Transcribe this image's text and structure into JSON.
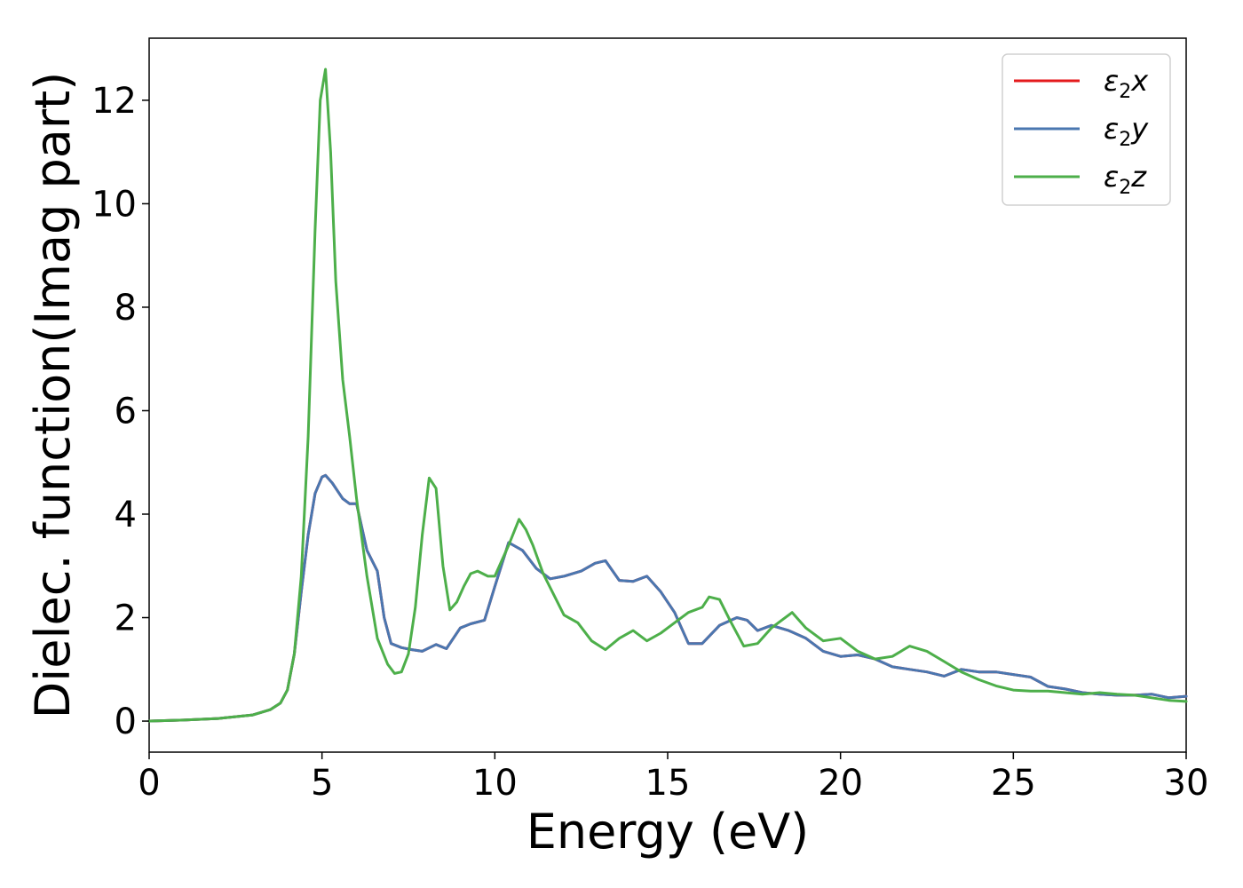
{
  "chart_data": {
    "type": "line",
    "xlabel": "Energy (eV)",
    "ylabel": "Dielec. function(Imag part)",
    "xlim": [
      0,
      30
    ],
    "ylim": [
      -0.6,
      13.2
    ],
    "xticks": [
      0,
      5,
      10,
      15,
      20,
      25,
      30
    ],
    "yticks": [
      0,
      2,
      4,
      6,
      8,
      10,
      12
    ],
    "grid": false,
    "legend_position": "top-right",
    "series": [
      {
        "name": "ε2x",
        "legend": {
          "symbol": "ε",
          "sub": "2",
          "axis": "x"
        },
        "color": "#e41a1c",
        "x": [
          0,
          1,
          2,
          3,
          3.5,
          3.8,
          4.0,
          4.2,
          4.4,
          4.6,
          4.8,
          5.0,
          5.1,
          5.3,
          5.6,
          5.8,
          6.0,
          6.3,
          6.6,
          6.8,
          7.0,
          7.3,
          7.6,
          7.9,
          8.3,
          8.6,
          9.0,
          9.3,
          9.7,
          10.0,
          10.4,
          10.8,
          11.2,
          11.6,
          12.0,
          12.5,
          12.9,
          13.2,
          13.6,
          14.0,
          14.4,
          14.8,
          15.2,
          15.6,
          16.0,
          16.5,
          17.0,
          17.3,
          17.6,
          18.0,
          18.5,
          19.0,
          19.5,
          20.0,
          20.5,
          21.0,
          21.5,
          22.0,
          22.5,
          23.0,
          23.5,
          24.0,
          24.5,
          25.0,
          25.5,
          26.0,
          26.5,
          27.0,
          27.5,
          28.0,
          28.5,
          29.0,
          29.5,
          30.0
        ],
        "values": [
          0.0,
          0.02,
          0.05,
          0.12,
          0.22,
          0.35,
          0.6,
          1.3,
          2.5,
          3.6,
          4.4,
          4.72,
          4.75,
          4.6,
          4.3,
          4.2,
          4.2,
          3.3,
          2.9,
          2.0,
          1.5,
          1.42,
          1.38,
          1.35,
          1.48,
          1.4,
          1.8,
          1.88,
          1.95,
          2.6,
          3.45,
          3.3,
          2.95,
          2.75,
          2.8,
          2.9,
          3.05,
          3.1,
          2.72,
          2.7,
          2.8,
          2.5,
          2.1,
          1.5,
          1.5,
          1.85,
          2.0,
          1.95,
          1.75,
          1.85,
          1.75,
          1.6,
          1.35,
          1.25,
          1.28,
          1.2,
          1.05,
          1.0,
          0.95,
          0.87,
          1.0,
          0.95,
          0.95,
          0.9,
          0.85,
          0.67,
          0.62,
          0.55,
          0.52,
          0.5,
          0.5,
          0.52,
          0.45,
          0.48
        ]
      },
      {
        "name": "ε2y",
        "legend": {
          "symbol": "ε",
          "sub": "2",
          "axis": "y"
        },
        "color": "#4a77b0",
        "x": [
          0,
          1,
          2,
          3,
          3.5,
          3.8,
          4.0,
          4.2,
          4.4,
          4.6,
          4.8,
          5.0,
          5.1,
          5.3,
          5.6,
          5.8,
          6.0,
          6.3,
          6.6,
          6.8,
          7.0,
          7.3,
          7.6,
          7.9,
          8.3,
          8.6,
          9.0,
          9.3,
          9.7,
          10.0,
          10.4,
          10.8,
          11.2,
          11.6,
          12.0,
          12.5,
          12.9,
          13.2,
          13.6,
          14.0,
          14.4,
          14.8,
          15.2,
          15.6,
          16.0,
          16.5,
          17.0,
          17.3,
          17.6,
          18.0,
          18.5,
          19.0,
          19.5,
          20.0,
          20.5,
          21.0,
          21.5,
          22.0,
          22.5,
          23.0,
          23.5,
          24.0,
          24.5,
          25.0,
          25.5,
          26.0,
          26.5,
          27.0,
          27.5,
          28.0,
          28.5,
          29.0,
          29.5,
          30.0
        ],
        "values": [
          0.0,
          0.02,
          0.05,
          0.12,
          0.22,
          0.35,
          0.6,
          1.3,
          2.5,
          3.6,
          4.4,
          4.72,
          4.75,
          4.6,
          4.3,
          4.2,
          4.2,
          3.3,
          2.9,
          2.0,
          1.5,
          1.42,
          1.38,
          1.35,
          1.48,
          1.4,
          1.8,
          1.88,
          1.95,
          2.6,
          3.45,
          3.3,
          2.95,
          2.75,
          2.8,
          2.9,
          3.05,
          3.1,
          2.72,
          2.7,
          2.8,
          2.5,
          2.1,
          1.5,
          1.5,
          1.85,
          2.0,
          1.95,
          1.75,
          1.85,
          1.75,
          1.6,
          1.35,
          1.25,
          1.28,
          1.2,
          1.05,
          1.0,
          0.95,
          0.87,
          1.0,
          0.95,
          0.95,
          0.9,
          0.85,
          0.67,
          0.62,
          0.55,
          0.52,
          0.5,
          0.5,
          0.52,
          0.45,
          0.48
        ]
      },
      {
        "name": "ε2z",
        "legend": {
          "symbol": "ε",
          "sub": "2",
          "axis": "z"
        },
        "color": "#4daf4a",
        "x": [
          0,
          1,
          2,
          3,
          3.5,
          3.8,
          4.0,
          4.2,
          4.4,
          4.6,
          4.8,
          4.95,
          5.1,
          5.25,
          5.4,
          5.6,
          5.8,
          6.0,
          6.3,
          6.6,
          6.9,
          7.1,
          7.3,
          7.5,
          7.7,
          7.9,
          8.1,
          8.3,
          8.5,
          8.7,
          8.9,
          9.1,
          9.3,
          9.5,
          9.8,
          10.0,
          10.2,
          10.4,
          10.7,
          10.9,
          11.1,
          11.4,
          11.7,
          12.0,
          12.4,
          12.8,
          13.2,
          13.6,
          14.0,
          14.4,
          14.8,
          15.2,
          15.6,
          16.0,
          16.2,
          16.5,
          16.8,
          17.2,
          17.6,
          18.0,
          18.3,
          18.6,
          19.0,
          19.5,
          20.0,
          20.5,
          21.0,
          21.5,
          22.0,
          22.5,
          23.0,
          23.5,
          24.0,
          24.5,
          25.0,
          25.5,
          26.0,
          26.5,
          27.0,
          27.5,
          28.0,
          28.5,
          29.0,
          29.5,
          30.0
        ],
        "values": [
          0.0,
          0.02,
          0.05,
          0.12,
          0.22,
          0.35,
          0.6,
          1.3,
          2.8,
          5.5,
          9.5,
          12.0,
          12.6,
          11.0,
          8.5,
          6.6,
          5.5,
          4.3,
          2.8,
          1.6,
          1.1,
          0.92,
          0.95,
          1.3,
          2.2,
          3.6,
          4.7,
          4.5,
          3.0,
          2.15,
          2.3,
          2.6,
          2.85,
          2.9,
          2.8,
          2.8,
          3.1,
          3.4,
          3.9,
          3.7,
          3.4,
          2.85,
          2.45,
          2.05,
          1.9,
          1.55,
          1.38,
          1.6,
          1.75,
          1.55,
          1.7,
          1.9,
          2.1,
          2.2,
          2.4,
          2.35,
          1.95,
          1.45,
          1.5,
          1.8,
          1.95,
          2.1,
          1.8,
          1.55,
          1.6,
          1.35,
          1.2,
          1.25,
          1.45,
          1.35,
          1.15,
          0.95,
          0.8,
          0.68,
          0.6,
          0.58,
          0.58,
          0.55,
          0.52,
          0.55,
          0.52,
          0.5,
          0.45,
          0.4,
          0.38
        ]
      }
    ]
  }
}
